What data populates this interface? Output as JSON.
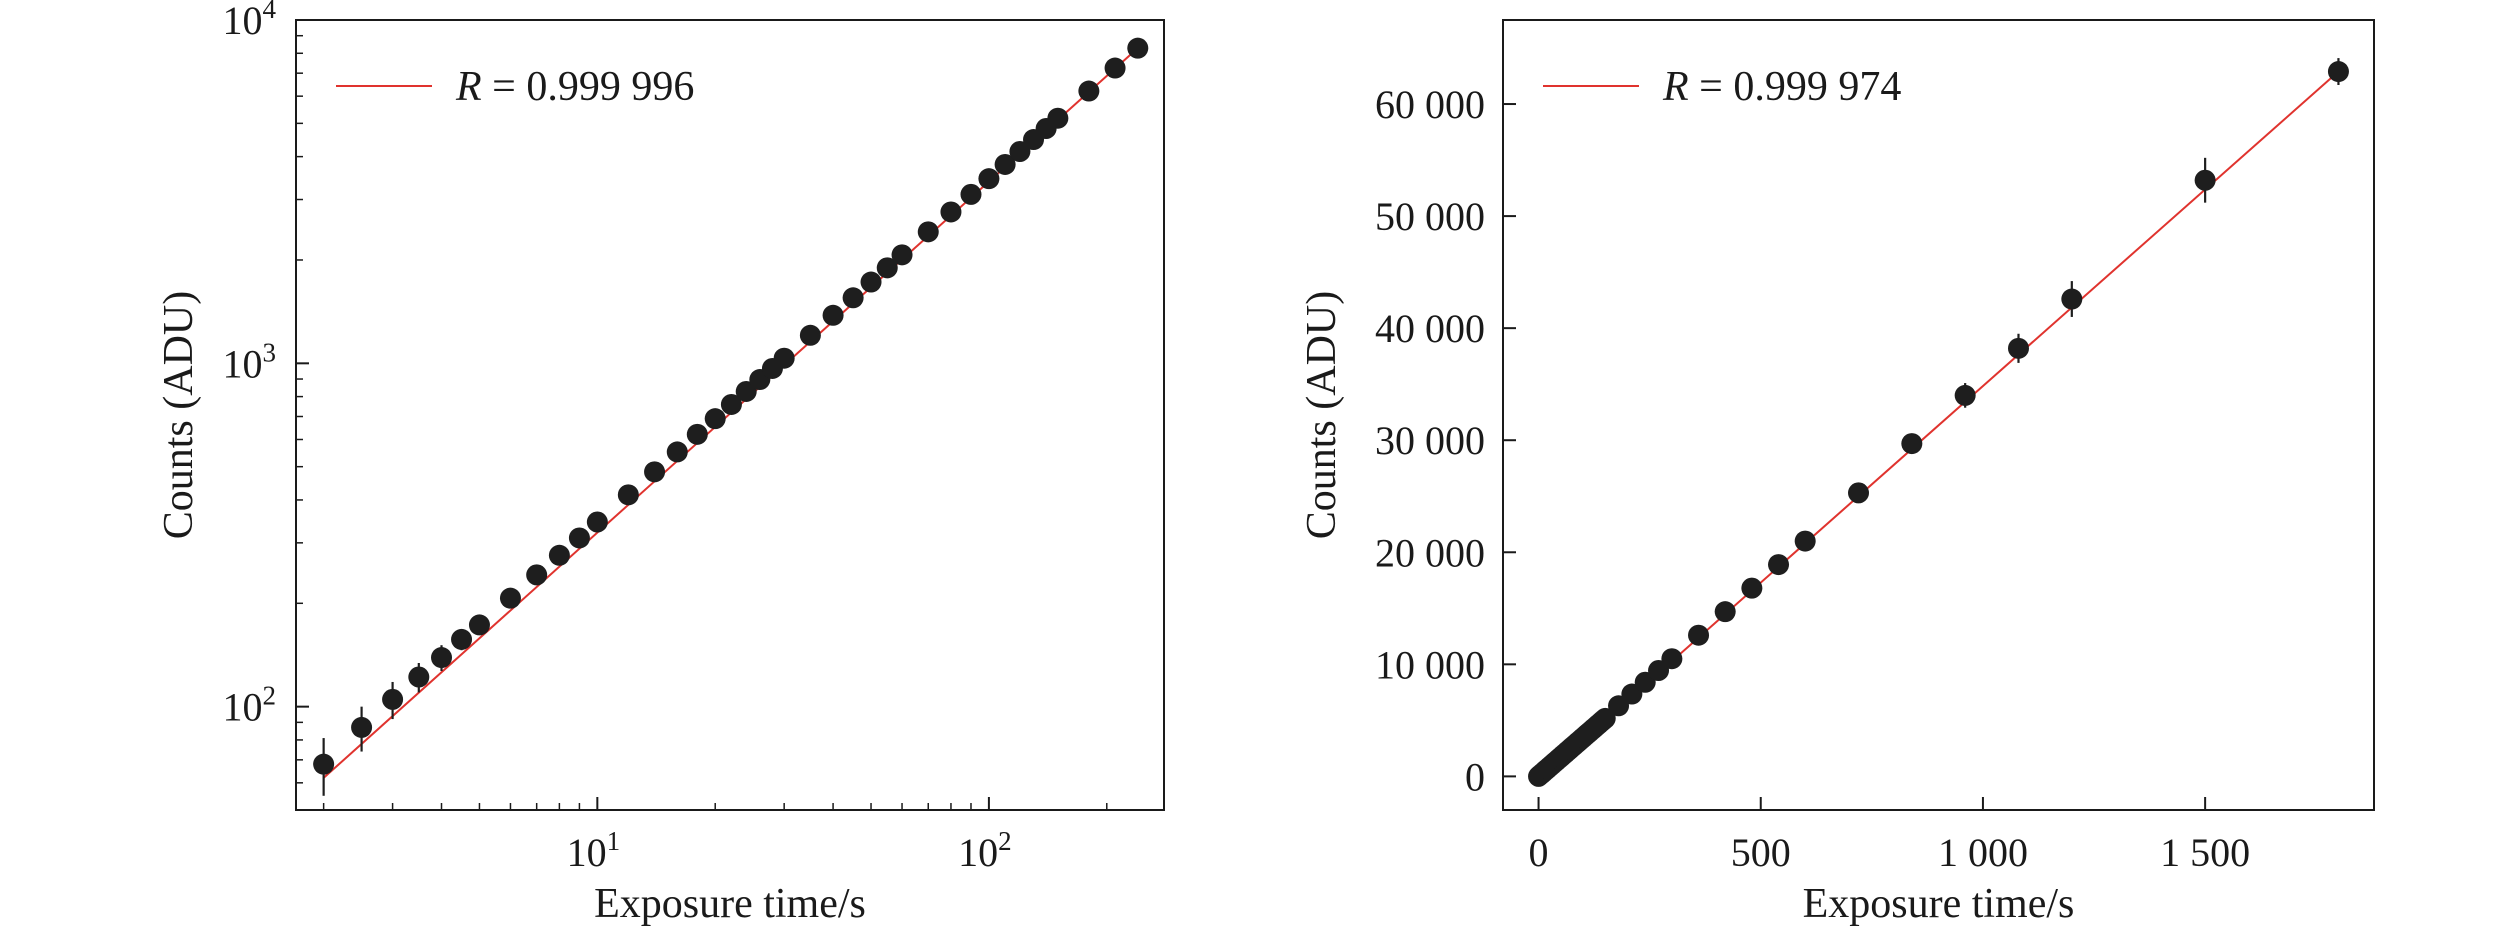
{
  "chart_data": [
    {
      "type": "scatter",
      "xlabel": "Exposure time/s",
      "ylabel": "Counts (ADU)",
      "xscale": "log",
      "yscale": "log",
      "xlim": [
        1.7,
        280
      ],
      "ylim": [
        50,
        10000
      ],
      "xticks": [
        {
          "value": 10,
          "base": "10",
          "exp": "1"
        },
        {
          "value": 100,
          "base": "10",
          "exp": "2"
        }
      ],
      "yticks": [
        {
          "value": 100,
          "base": "10",
          "exp": "2"
        },
        {
          "value": 1000,
          "base": "10",
          "exp": "3"
        },
        {
          "value": 10000,
          "base": "10",
          "exp": "4"
        }
      ],
      "legend": {
        "label_italic": "R",
        "label_rest": " = 0.999 996",
        "position": "top-left"
      },
      "colors": {
        "fit": "#e0332e",
        "points": "#1e1e1e"
      },
      "series": [
        {
          "kind": "points-with-error-bars",
          "x": [
            2,
            2.5,
            3,
            3.5,
            4,
            4.5,
            5,
            6,
            7,
            8,
            9,
            10,
            12,
            14,
            16,
            18,
            20,
            22,
            24,
            26,
            28,
            30,
            35,
            40,
            45,
            50,
            55,
            60,
            70,
            80,
            90,
            100,
            110,
            120,
            130,
            140,
            150,
            180,
            210,
            240
          ],
          "y": [
            68,
            87,
            105,
            122,
            139,
            157,
            173,
            207,
            242,
            276,
            310,
            345,
            414,
            483,
            552,
            621,
            690,
            759,
            828,
            897,
            966,
            1035,
            1207,
            1380,
            1552,
            1725,
            1897,
            2070,
            2415,
            2760,
            3105,
            3450,
            3795,
            4140,
            4485,
            4830,
            5175,
            6210,
            7245,
            8280
          ],
          "yerr": [
            13,
            13,
            13,
            12,
            12,
            11,
            10,
            10,
            10,
            10,
            11,
            12,
            14,
            16,
            18,
            20,
            22,
            24,
            26,
            28,
            30,
            32,
            36,
            40,
            45,
            50,
            55,
            60,
            70,
            80,
            90,
            100,
            110,
            120,
            130,
            140,
            150,
            180,
            210,
            240
          ]
        },
        {
          "kind": "fit-line",
          "x": [
            2,
            240
          ],
          "y": [
            62,
            8280
          ]
        }
      ]
    },
    {
      "type": "scatter",
      "xlabel": "Exposure time/s",
      "ylabel": "Counts (ADU)",
      "xscale": "linear",
      "yscale": "linear",
      "xlim": [
        -80,
        1880
      ],
      "ylim": [
        -3000,
        67500
      ],
      "xticks": [
        {
          "value": 0,
          "label": "0"
        },
        {
          "value": 500,
          "label": "500"
        },
        {
          "value": 1000,
          "label": "1 000"
        },
        {
          "value": 1500,
          "label": "1 500"
        }
      ],
      "yticks": [
        {
          "value": 0,
          "label": "0"
        },
        {
          "value": 10000,
          "label": "10 000"
        },
        {
          "value": 20000,
          "label": "20 000"
        },
        {
          "value": 30000,
          "label": "30 000"
        },
        {
          "value": 40000,
          "label": "40 000"
        },
        {
          "value": 50000,
          "label": "50 000"
        },
        {
          "value": 60000,
          "label": "60 000"
        }
      ],
      "legend": {
        "label_italic": "R",
        "label_rest": " = 0.999 974",
        "position": "top-left"
      },
      "colors": {
        "fit": "#e0332e",
        "points": "#1e1e1e"
      },
      "series": [
        {
          "kind": "points-with-error-bars",
          "x": [
            0,
            5,
            10,
            15,
            20,
            25,
            30,
            35,
            40,
            45,
            50,
            55,
            60,
            65,
            70,
            75,
            80,
            85,
            90,
            95,
            100,
            105,
            110,
            115,
            120,
            125,
            130,
            135,
            140,
            145,
            150,
            180,
            210,
            240,
            270,
            300,
            360,
            420,
            480,
            540,
            600,
            720,
            840,
            960,
            1080,
            1200,
            1500,
            1800
          ],
          "y": [
            0,
            175,
            345,
            520,
            690,
            865,
            1035,
            1210,
            1380,
            1555,
            1725,
            1900,
            2070,
            2245,
            2415,
            2590,
            2760,
            2935,
            3105,
            3280,
            3450,
            3625,
            3795,
            3970,
            4140,
            4315,
            4485,
            4660,
            4830,
            5005,
            5175,
            6300,
            7350,
            8400,
            9450,
            10500,
            12600,
            14700,
            16800,
            18900,
            21000,
            25300,
            29700,
            34000,
            38200,
            42600,
            53200,
            62900
          ],
          "yerr": [
            0,
            0,
            0,
            0,
            0,
            0,
            0,
            0,
            0,
            0,
            0,
            0,
            0,
            0,
            0,
            0,
            0,
            0,
            0,
            0,
            0,
            0,
            0,
            0,
            0,
            0,
            0,
            0,
            0,
            0,
            0,
            0,
            0,
            0,
            0,
            0,
            0,
            0,
            0,
            0,
            0,
            800,
            900,
            1100,
            1300,
            1600,
            2000,
            1200
          ]
        },
        {
          "kind": "fit-line",
          "x": [
            0,
            1800
          ],
          "y": [
            -250,
            62900
          ]
        }
      ]
    }
  ]
}
